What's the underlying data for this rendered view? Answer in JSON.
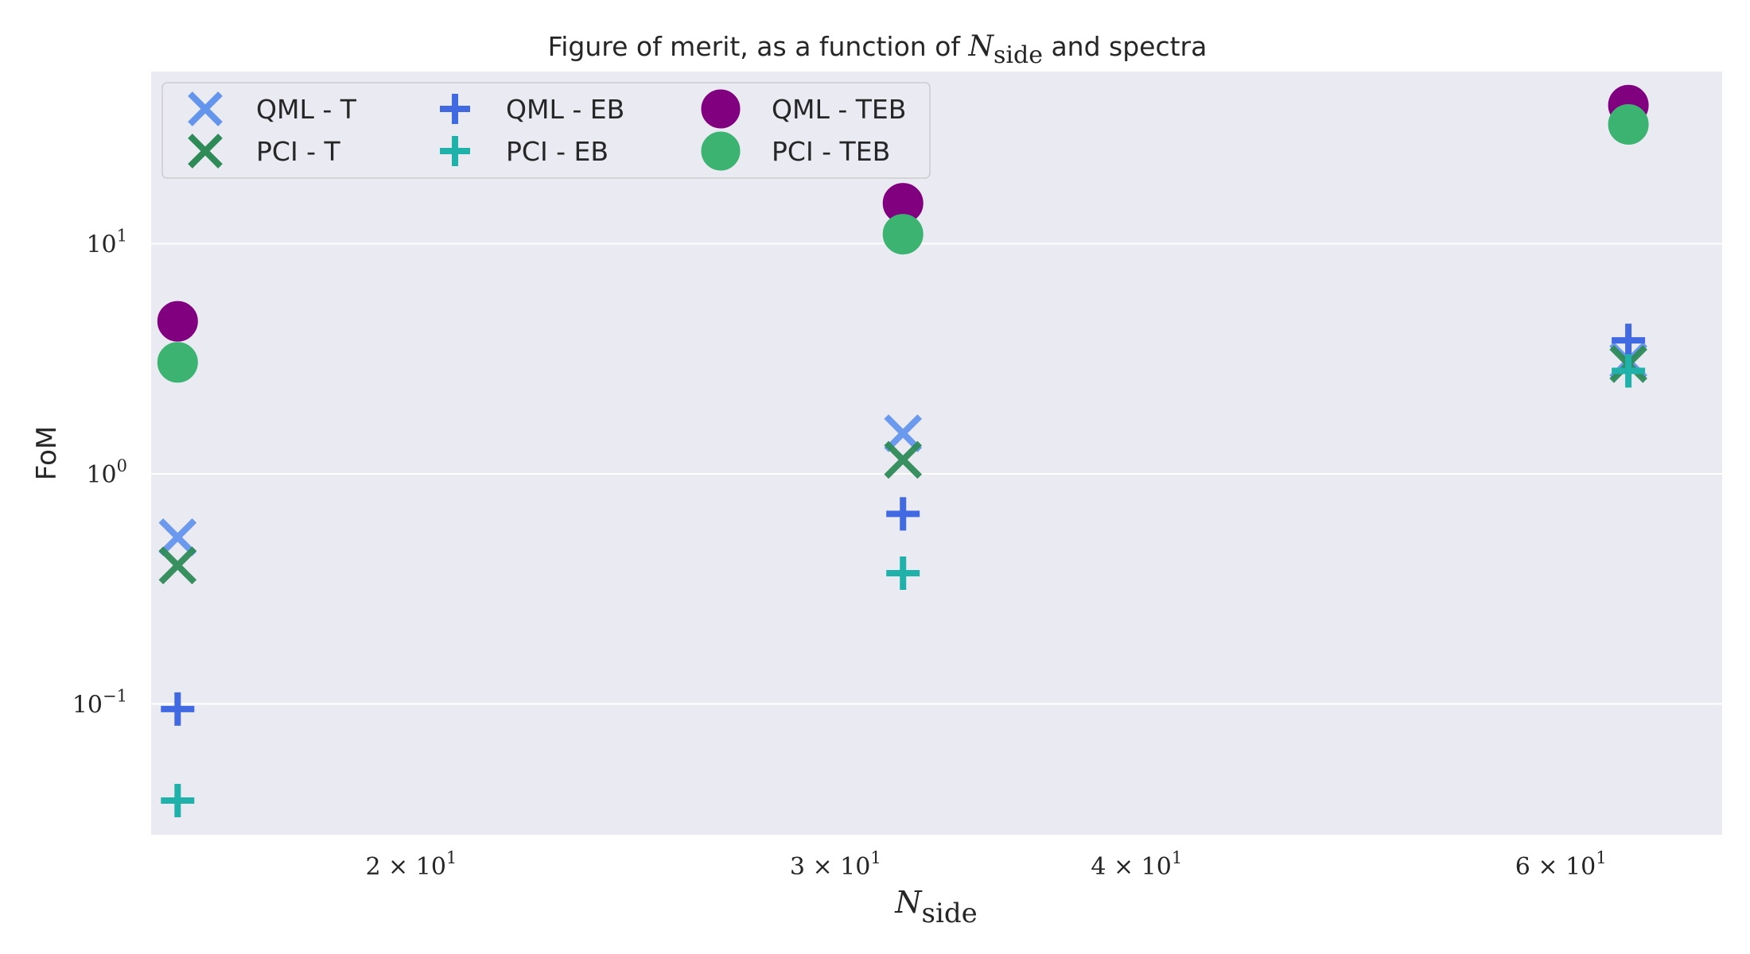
{
  "chart_data": {
    "type": "scatter",
    "title_prefix": "Figure of merit, as a function of ",
    "title_math_symbol": "N",
    "title_math_sub": "side",
    "title_suffix": " and spectra",
    "xlabel_symbol": "N",
    "xlabel_sub": "side",
    "ylabel": "FoM",
    "xscale": "log",
    "yscale": "log",
    "xlim": [
      15.6,
      70
    ],
    "ylim": [
      0.027,
      56
    ],
    "grid": "horizontal",
    "legend_position": "top-left",
    "legend_columns": 3,
    "x_ticks": [
      {
        "value": 20,
        "mantissa": "2",
        "exponent": "1"
      },
      {
        "value": 30,
        "mantissa": "3",
        "exponent": "1"
      },
      {
        "value": 40,
        "mantissa": "4",
        "exponent": "1"
      },
      {
        "value": 60,
        "mantissa": "6",
        "exponent": "1"
      }
    ],
    "y_ticks": [
      {
        "value": 0.1,
        "base": "10",
        "exponent": "−1"
      },
      {
        "value": 1,
        "base": "10",
        "exponent": "0"
      },
      {
        "value": 10,
        "base": "10",
        "exponent": "1"
      }
    ],
    "x": [
      16,
      32,
      64
    ],
    "series": [
      {
        "name": "QML - T",
        "marker": "x",
        "color": "#6495ED",
        "values": [
          0.53,
          1.5,
          3.1
        ]
      },
      {
        "name": "PCI - T",
        "marker": "x",
        "color": "#2E8B57",
        "values": [
          0.4,
          1.15,
          3.0
        ]
      },
      {
        "name": "QML - EB",
        "marker": "plus",
        "color": "#4169E1",
        "values": [
          0.095,
          0.67,
          3.8
        ]
      },
      {
        "name": "PCI - EB",
        "marker": "plus",
        "color": "#20B2AA",
        "values": [
          0.038,
          0.37,
          2.8
        ]
      },
      {
        "name": "QML - TEB",
        "marker": "circle",
        "color": "#800080",
        "values": [
          4.6,
          15.0,
          40.0
        ]
      },
      {
        "name": "PCI - TEB",
        "marker": "circle",
        "color": "#3CB371",
        "values": [
          3.05,
          11.0,
          33.0
        ]
      }
    ],
    "colors": {
      "plot_background": "#EAEAF2",
      "grid": "#FFFFFF",
      "text": "#262626"
    }
  }
}
